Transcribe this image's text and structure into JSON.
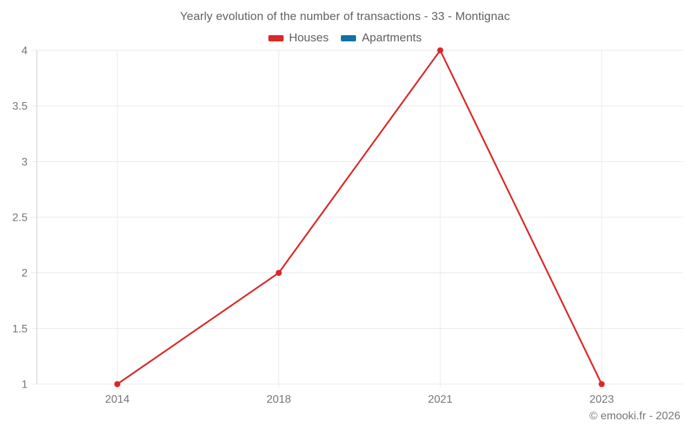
{
  "chart_data": {
    "type": "line",
    "title": "Yearly evolution of the number of transactions - 33 - Montignac",
    "categories": [
      "2014",
      "2018",
      "2021",
      "2023"
    ],
    "series": [
      {
        "name": "Houses",
        "color": "#db2727",
        "values": [
          1,
          2,
          4,
          1
        ]
      },
      {
        "name": "Apartments",
        "color": "#1272a5",
        "values": []
      }
    ],
    "ylim": [
      1,
      4
    ],
    "y_tick_step": 0.5,
    "y_tick_labels": [
      "1",
      "1.5",
      "2",
      "2.5",
      "3",
      "3.5",
      "4"
    ],
    "xlabel": "",
    "ylabel": "",
    "grid": true,
    "legend_position": "top",
    "marker": "circle"
  },
  "footer": {
    "credit": "© emooki.fr - 2026"
  },
  "colors": {
    "background": "#ffffff",
    "axis_line": "#cfcfcf",
    "grid_line": "#e9e9e9",
    "tick_label": "#757575",
    "title_text": "#616161",
    "legend_text": "#616161",
    "footer_text": "#757575"
  }
}
